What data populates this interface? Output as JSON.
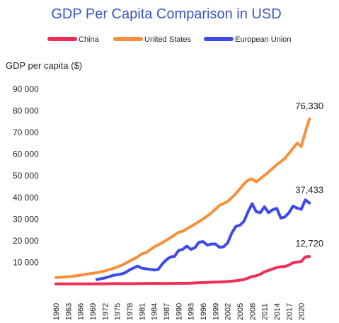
{
  "chart_data": {
    "type": "line",
    "title": "GDP Per Capita Comparison in USD",
    "ylabel": "GDP per capita ($)",
    "xlabel": "",
    "xlim": [
      1960,
      2023
    ],
    "ylim": [
      0,
      90000
    ],
    "grid": false,
    "legend_position": "top",
    "y_ticks": [
      {
        "value": 10000,
        "label": "10 000"
      },
      {
        "value": 20000,
        "label": "20 000"
      },
      {
        "value": 30000,
        "label": "30 000"
      },
      {
        "value": 40000,
        "label": "40 000"
      },
      {
        "value": 50000,
        "label": "50 000"
      },
      {
        "value": 60000,
        "label": "60 000"
      },
      {
        "value": 70000,
        "label": "70 000"
      },
      {
        "value": 80000,
        "label": "80 000"
      },
      {
        "value": 90000,
        "label": "90 000"
      }
    ],
    "x_ticks": [
      "1960",
      "1963",
      "1966",
      "1969",
      "1972",
      "1975",
      "1978",
      "1981",
      "1984",
      "1987",
      "1990",
      "1993",
      "1996",
      "1999",
      "2002",
      "2005",
      "2008",
      "2011",
      "2014",
      "2017",
      "2020"
    ],
    "series": [
      {
        "name": "China",
        "color": "#f02d57",
        "end_label": "12,720",
        "points": [
          [
            1960,
            90
          ],
          [
            1962,
            70
          ],
          [
            1965,
            100
          ],
          [
            1968,
            90
          ],
          [
            1970,
            110
          ],
          [
            1972,
            130
          ],
          [
            1975,
            180
          ],
          [
            1978,
            160
          ],
          [
            1980,
            200
          ],
          [
            1983,
            300
          ],
          [
            1985,
            290
          ],
          [
            1987,
            250
          ],
          [
            1990,
            320
          ],
          [
            1993,
            380
          ],
          [
            1995,
            610
          ],
          [
            1998,
            830
          ],
          [
            2000,
            960
          ],
          [
            2002,
            1150
          ],
          [
            2004,
            1510
          ],
          [
            2006,
            2100
          ],
          [
            2008,
            3470
          ],
          [
            2009,
            3830
          ],
          [
            2010,
            4550
          ],
          [
            2011,
            5620
          ],
          [
            2012,
            6300
          ],
          [
            2013,
            7020
          ],
          [
            2014,
            7640
          ],
          [
            2015,
            8030
          ],
          [
            2016,
            8080
          ],
          [
            2017,
            8820
          ],
          [
            2018,
            9900
          ],
          [
            2019,
            10140
          ],
          [
            2020,
            10400
          ],
          [
            2021,
            12560
          ],
          [
            2022,
            12720
          ]
        ]
      },
      {
        "name": "United States",
        "color": "#f7903a",
        "end_label": "76,330",
        "points": [
          [
            1960,
            3000
          ],
          [
            1962,
            3240
          ],
          [
            1964,
            3570
          ],
          [
            1966,
            4100
          ],
          [
            1968,
            4700
          ],
          [
            1970,
            5230
          ],
          [
            1972,
            6090
          ],
          [
            1974,
            7240
          ],
          [
            1976,
            8590
          ],
          [
            1978,
            10560
          ],
          [
            1980,
            12550
          ],
          [
            1981,
            13980
          ],
          [
            1982,
            14430
          ],
          [
            1984,
            17120
          ],
          [
            1986,
            19070
          ],
          [
            1988,
            21420
          ],
          [
            1990,
            23890
          ],
          [
            1991,
            24340
          ],
          [
            1992,
            25460
          ],
          [
            1994,
            27700
          ],
          [
            1996,
            30070
          ],
          [
            1998,
            32850
          ],
          [
            2000,
            36330
          ],
          [
            2002,
            38120
          ],
          [
            2004,
            41730
          ],
          [
            2006,
            46300
          ],
          [
            2007,
            48050
          ],
          [
            2008,
            48570
          ],
          [
            2009,
            47190
          ],
          [
            2010,
            48650
          ],
          [
            2012,
            51730
          ],
          [
            2014,
            55120
          ],
          [
            2016,
            58020
          ],
          [
            2018,
            62820
          ],
          [
            2019,
            65120
          ],
          [
            2020,
            63530
          ],
          [
            2021,
            70250
          ],
          [
            2022,
            76330
          ]
        ]
      },
      {
        "name": "European Union",
        "color": "#3d4aeb",
        "end_label": "37,433",
        "points": [
          [
            1970,
            2100
          ],
          [
            1972,
            2800
          ],
          [
            1974,
            4000
          ],
          [
            1976,
            4600
          ],
          [
            1977,
            5300
          ],
          [
            1978,
            6500
          ],
          [
            1980,
            8300
          ],
          [
            1981,
            7300
          ],
          [
            1983,
            6800
          ],
          [
            1984,
            6500
          ],
          [
            1985,
            6700
          ],
          [
            1986,
            9200
          ],
          [
            1987,
            11200
          ],
          [
            1988,
            12500
          ],
          [
            1989,
            12800
          ],
          [
            1990,
            15500
          ],
          [
            1991,
            16000
          ],
          [
            1992,
            17500
          ],
          [
            1993,
            16000
          ],
          [
            1994,
            16800
          ],
          [
            1995,
            19300
          ],
          [
            1996,
            19600
          ],
          [
            1997,
            18000
          ],
          [
            1998,
            18500
          ],
          [
            1999,
            18500
          ],
          [
            2000,
            17000
          ],
          [
            2001,
            17200
          ],
          [
            2002,
            19000
          ],
          [
            2003,
            23500
          ],
          [
            2004,
            26600
          ],
          [
            2005,
            27200
          ],
          [
            2006,
            29000
          ],
          [
            2007,
            33500
          ],
          [
            2008,
            37100
          ],
          [
            2009,
            33400
          ],
          [
            2010,
            33000
          ],
          [
            2011,
            35700
          ],
          [
            2012,
            33000
          ],
          [
            2013,
            34300
          ],
          [
            2014,
            35000
          ],
          [
            2015,
            30500
          ],
          [
            2016,
            31000
          ],
          [
            2017,
            33000
          ],
          [
            2018,
            36000
          ],
          [
            2019,
            35100
          ],
          [
            2020,
            34500
          ],
          [
            2021,
            38900
          ],
          [
            2022,
            37433
          ]
        ]
      }
    ]
  }
}
